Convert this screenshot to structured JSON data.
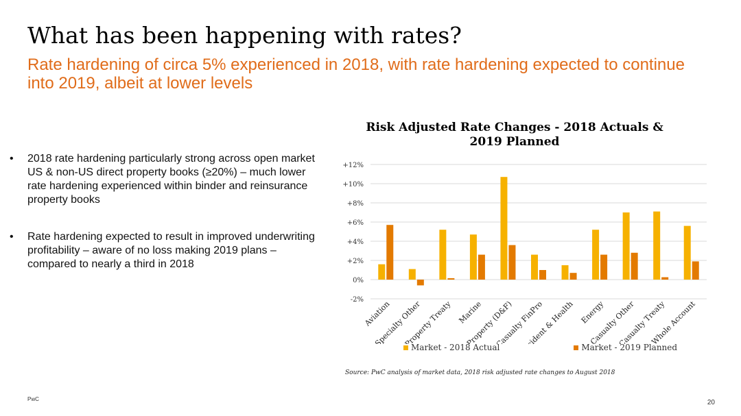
{
  "slide": {
    "title": "What has been happening with rates?",
    "subtitle": "Rate hardening of circa 5% experienced in 2018, with rate hardening expected to continue into 2019, albeit at lower levels",
    "bullet_marker": "•",
    "bullets": [
      "2018 rate hardening particularly strong across open market US & non-US direct property books (≥20%) – much lower rate hardening experienced within binder and reinsurance property books",
      "Rate hardening expected to result in improved underwriting profitability – aware of no loss making 2019 plans – compared to nearly a third in 2018"
    ],
    "source": "Source: PwC analysis of market data, 2018 risk adjusted rate changes to August 2018",
    "brand": "PwC",
    "page_number": "20"
  },
  "chart_data": {
    "type": "bar",
    "title": "Risk Adjusted Rate Changes - 2018 Actuals & 2019 Planned",
    "xlabel": "",
    "ylabel": "",
    "ylim": [
      -2,
      12
    ],
    "yticks": [
      -2,
      0,
      2,
      4,
      6,
      8,
      10,
      12
    ],
    "ytick_labels": [
      "-2%",
      "0%",
      "+2%",
      "+4%",
      "+6%",
      "+8%",
      "+10%",
      "+12%"
    ],
    "grid": true,
    "legend_position": "bottom",
    "categories": [
      "Aviation",
      "Specialty Other",
      "Property Treaty",
      "Marine",
      "Property (D&F)",
      "Casualty FinPro",
      "Accident & Health",
      "Energy",
      "Casualty Other",
      "Casualty Treaty",
      "Whole Account"
    ],
    "series": [
      {
        "name": "Market - 2018 Actual",
        "color": "#f6b100",
        "values": [
          1.6,
          1.1,
          5.2,
          4.7,
          10.7,
          2.6,
          1.5,
          5.2,
          7.0,
          7.1,
          5.6
        ]
      },
      {
        "name": "Market - 2019 Planned",
        "color": "#e37a00",
        "values": [
          5.7,
          -0.6,
          0.15,
          2.6,
          3.6,
          1.0,
          0.7,
          2.6,
          2.8,
          0.25,
          1.9
        ]
      }
    ]
  }
}
